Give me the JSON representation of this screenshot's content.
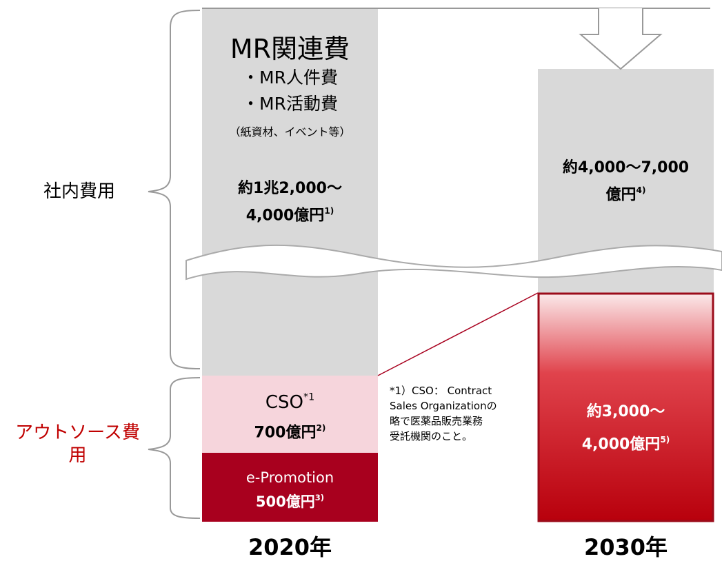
{
  "brackets": [
    {
      "label": "社内費用"
    },
    {
      "label": "アウトソース費用"
    }
  ],
  "columns": [
    {
      "year": "2020年",
      "blocks": [
        {
          "title": "MR関連費",
          "items": [
            "・MR人件費",
            "・MR活動費"
          ],
          "detail": "（紙資材、イベント等）",
          "amount": [
            "約1兆2,000～",
            "4,000億円"
          ],
          "note": "1)"
        },
        {
          "label": "CSO",
          "label_note": "*1",
          "amount": "700億円",
          "note": "2)"
        },
        {
          "label": "e-Promotion",
          "amount": "500億円",
          "note": "3)"
        }
      ]
    },
    {
      "year": "2030年",
      "blocks": [
        {
          "amount": [
            "約4,000～7,000",
            "億円"
          ],
          "note": "4)"
        },
        {
          "amount": [
            "約3,000～",
            "4,000億円"
          ],
          "note": "5)"
        }
      ]
    }
  ],
  "footnote": [
    "*1）CSO： Contract",
    "Sales Organizationの",
    "略で医薬品販売業務",
    "受託機関のこと。"
  ]
}
